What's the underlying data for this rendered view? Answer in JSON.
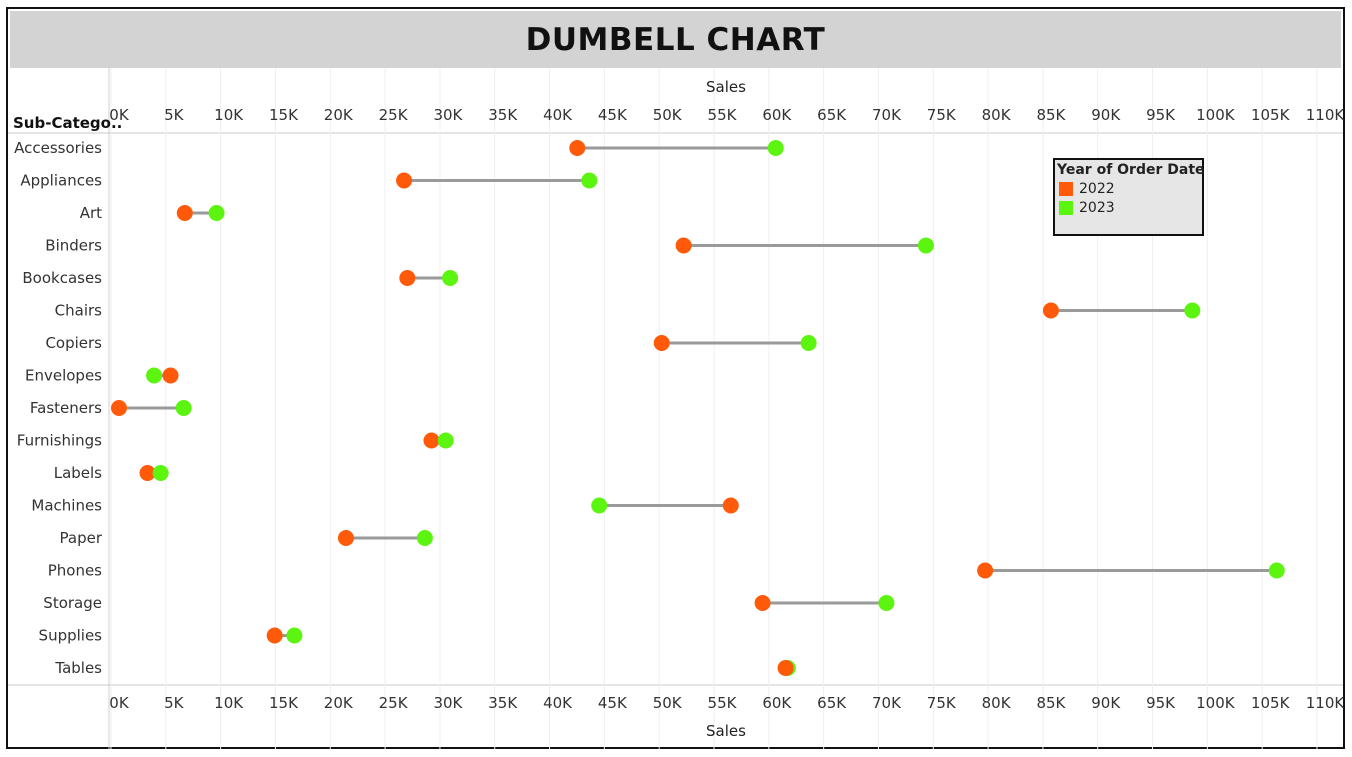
{
  "title": "DUMBELL CHART",
  "chart_data": {
    "type": "dumbbell",
    "title": "DUMBELL CHART",
    "xlabel": "Sales",
    "row_header": "Sub-Catego..",
    "xlim": [
      0,
      110000
    ],
    "xticks": [
      0,
      5000,
      10000,
      15000,
      20000,
      25000,
      30000,
      35000,
      40000,
      45000,
      50000,
      55000,
      60000,
      65000,
      70000,
      75000,
      80000,
      85000,
      90000,
      95000,
      100000,
      105000,
      110000
    ],
    "xtick_labels": [
      "0K",
      "5K",
      "10K",
      "15K",
      "20K",
      "25K",
      "30K",
      "35K",
      "40K",
      "45K",
      "50K",
      "55K",
      "60K",
      "65K",
      "70K",
      "75K",
      "80K",
      "85K",
      "90K",
      "95K",
      "100K",
      "105K",
      "110K"
    ],
    "grid": "vertical",
    "legend_title": "Year of Order Date",
    "legend_position": "top-right",
    "categories": [
      "Accessories",
      "Appliances",
      "Art",
      "Binders",
      "Bookcases",
      "Chairs",
      "Copiers",
      "Envelopes",
      "Fasteners",
      "Furnishings",
      "Labels",
      "Machines",
      "Paper",
      "Phones",
      "Storage",
      "Supplies",
      "Tables"
    ],
    "series": [
      {
        "name": "2022",
        "color": "#ff5a0a",
        "values": [
          41800,
          26000,
          6000,
          51500,
          26300,
          85000,
          49500,
          4700,
          0,
          28500,
          2600,
          55800,
          20700,
          79000,
          58700,
          14200,
          60800
        ]
      },
      {
        "name": "2023",
        "color": "#5cf50f",
        "values": [
          59900,
          42900,
          8900,
          73600,
          30200,
          97900,
          62900,
          3200,
          5900,
          29800,
          3800,
          43800,
          27900,
          105600,
          70000,
          16000,
          61000
        ]
      }
    ],
    "connector_color": "#9a9a9a"
  }
}
